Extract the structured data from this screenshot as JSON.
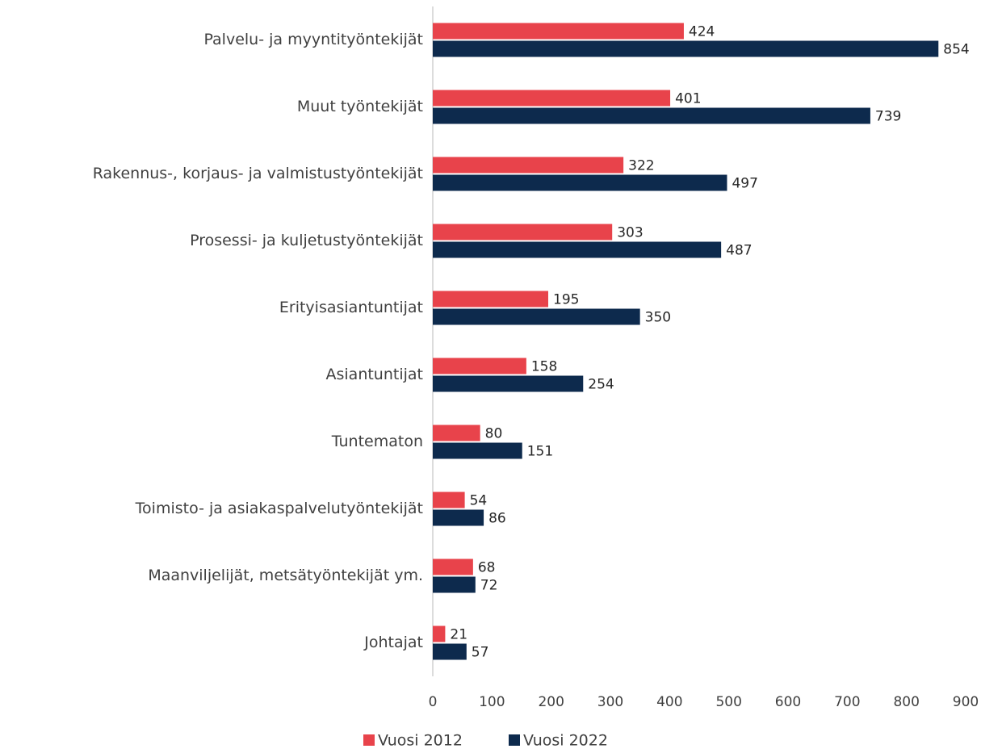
{
  "chart_data": {
    "type": "bar",
    "orientation": "horizontal",
    "categories": [
      "Palvelu- ja myyntityöntekijät",
      "Muut työntekijät",
      "Rakennus-, korjaus- ja valmistustyöntekijät",
      "Prosessi- ja kuljetustyöntekijät",
      "Erityisasiantuntijat",
      "Asiantuntijat",
      "Tuntematon",
      "Toimisto- ja asiakaspalvelutyöntekijät",
      "Maanviljelijät, metsätyöntekijät ym.",
      "Johtajat"
    ],
    "series": [
      {
        "name": "Vuosi 2012",
        "color": "#e8434b",
        "values": [
          424,
          401,
          322,
          303,
          195,
          158,
          80,
          54,
          68,
          21
        ]
      },
      {
        "name": "Vuosi 2022",
        "color": "#0d2a4d",
        "values": [
          854,
          739,
          497,
          487,
          350,
          254,
          151,
          86,
          72,
          57
        ]
      }
    ],
    "xlim": [
      0,
      900
    ],
    "xticks": [
      0,
      100,
      200,
      300,
      400,
      500,
      600,
      700,
      800,
      900
    ],
    "grid": false,
    "legend": "bottom"
  }
}
